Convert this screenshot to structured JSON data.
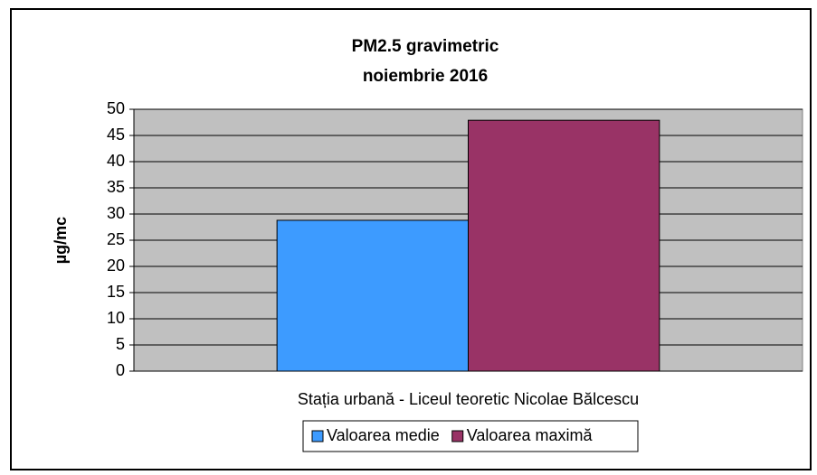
{
  "chart_data": {
    "type": "bar",
    "title": "PM2.5 gravimetric",
    "subtitle": "noiembrie 2016",
    "y_label": "µg/mc",
    "categories": [
      "Stația urbană - Liceul teoretic Nicolae Bălcescu"
    ],
    "series": [
      {
        "name": "Valoarea medie",
        "color": "#3d9bff",
        "values": [
          28.8
        ]
      },
      {
        "name": "Valoarea maximă",
        "color": "#993366",
        "values": [
          47.9
        ]
      }
    ],
    "ylim": [
      0,
      50
    ],
    "yticks": [
      0,
      5,
      10,
      15,
      20,
      25,
      30,
      35,
      40,
      45,
      50
    ],
    "grid": true,
    "legend": "bottom"
  }
}
